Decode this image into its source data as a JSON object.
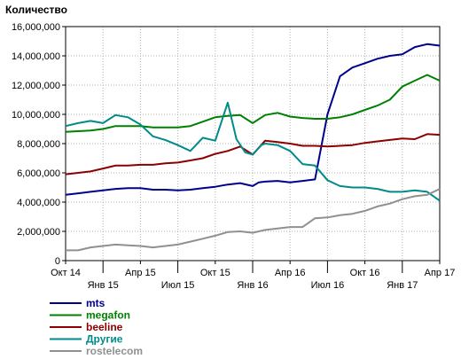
{
  "chart_data": {
    "type": "line",
    "ylabel": "Количество",
    "ylim": [
      0,
      16000000
    ],
    "yticks": [
      0,
      2000000,
      4000000,
      6000000,
      8000000,
      10000000,
      12000000,
      14000000,
      16000000
    ],
    "ytick_labels": [
      "0",
      "2,000,000",
      "4,000,000",
      "6,000,000",
      "8,000,000",
      "10,000,000",
      "12,000,000",
      "14,000,000",
      "16,000,000"
    ],
    "xlim": [
      0,
      30
    ],
    "xticks": [
      {
        "x": 0,
        "label": "Окт 14",
        "row": 1
      },
      {
        "x": 3,
        "label": "Янв 15",
        "row": 2
      },
      {
        "x": 6,
        "label": "Апр 15",
        "row": 1
      },
      {
        "x": 9,
        "label": "Июл 15",
        "row": 2
      },
      {
        "x": 12,
        "label": "Окт 15",
        "row": 1
      },
      {
        "x": 15,
        "label": "Янв 16",
        "row": 2
      },
      {
        "x": 18,
        "label": "Апр 16",
        "row": 1
      },
      {
        "x": 21,
        "label": "Июл 16",
        "row": 2
      },
      {
        "x": 24,
        "label": "Окт 16",
        "row": 1
      },
      {
        "x": 27,
        "label": "Янв 17",
        "row": 2
      },
      {
        "x": 30,
        "label": "Апр 17",
        "row": 1
      }
    ],
    "grid": true,
    "legend_position": "bottom-left",
    "series": [
      {
        "name": "mts",
        "color": "#00008b",
        "x": [
          0,
          1,
          2,
          3,
          4,
          5,
          6,
          7,
          8,
          9,
          10,
          11,
          12,
          13,
          14,
          15,
          15.5,
          16,
          17,
          18,
          19,
          20,
          21,
          22,
          23,
          24,
          25,
          26,
          27,
          28,
          29,
          30
        ],
        "values": [
          4500000,
          4600000,
          4700000,
          4800000,
          4900000,
          4950000,
          4950000,
          4850000,
          4850000,
          4800000,
          4850000,
          4950000,
          5050000,
          5200000,
          5300000,
          5100000,
          5350000,
          5400000,
          5450000,
          5350000,
          5450000,
          5550000,
          10000000,
          12600000,
          13200000,
          13500000,
          13800000,
          14000000,
          14100000,
          14600000,
          14800000,
          14700000
        ]
      },
      {
        "name": "megafon",
        "color": "#008000",
        "x": [
          0,
          1,
          2,
          3,
          4,
          5,
          6,
          7,
          8,
          9,
          10,
          11,
          12,
          13,
          14,
          15,
          16,
          17,
          18,
          19,
          20,
          21,
          22,
          23,
          24,
          25,
          26,
          27,
          28,
          29,
          30
        ],
        "values": [
          8800000,
          8850000,
          8900000,
          9000000,
          9200000,
          9200000,
          9200000,
          9100000,
          9100000,
          9100000,
          9200000,
          9500000,
          9800000,
          9900000,
          9950000,
          9400000,
          9950000,
          10100000,
          9850000,
          9750000,
          9700000,
          9700000,
          9800000,
          10000000,
          10300000,
          10600000,
          11000000,
          11900000,
          12300000,
          12700000,
          12300000
        ]
      },
      {
        "name": "beeline",
        "color": "#8b0000",
        "x": [
          0,
          1,
          2,
          3,
          4,
          5,
          6,
          7,
          8,
          9,
          10,
          11,
          12,
          13,
          14,
          15,
          16,
          17,
          18,
          19,
          20,
          21,
          22,
          23,
          24,
          25,
          26,
          27,
          28,
          29,
          30
        ],
        "values": [
          5900000,
          6000000,
          6100000,
          6300000,
          6500000,
          6500000,
          6550000,
          6550000,
          6650000,
          6700000,
          6850000,
          7000000,
          7300000,
          7500000,
          7800000,
          7250000,
          8200000,
          8100000,
          8000000,
          7850000,
          7850000,
          7800000,
          7850000,
          7900000,
          8050000,
          8150000,
          8250000,
          8350000,
          8300000,
          8650000,
          8600000
        ]
      },
      {
        "name": "Другие",
        "color": "#008b8b",
        "x": [
          0,
          1,
          2,
          3,
          4,
          5,
          6,
          7,
          8,
          9,
          10,
          11,
          12,
          13,
          13.7,
          14.4,
          15,
          15.7,
          16,
          17,
          18,
          19,
          20,
          21,
          22,
          23,
          24,
          25,
          26,
          27,
          28,
          29,
          30
        ],
        "values": [
          9200000,
          9400000,
          9550000,
          9400000,
          9950000,
          9800000,
          9300000,
          8500000,
          8250000,
          7900000,
          7500000,
          8400000,
          8200000,
          10800000,
          8300000,
          7400000,
          7250000,
          7900000,
          8000000,
          7900000,
          7500000,
          6600000,
          6500000,
          5500000,
          5100000,
          5000000,
          5000000,
          4900000,
          4700000,
          4700000,
          4800000,
          4700000,
          4100000
        ]
      },
      {
        "name": "rostelecom",
        "color": "#909090",
        "x": [
          0,
          1,
          2,
          3,
          4,
          5,
          6,
          7,
          8,
          9,
          10,
          11,
          12,
          13,
          14,
          15,
          16,
          17,
          18,
          19,
          20,
          21,
          22,
          23,
          24,
          25,
          26,
          27,
          28,
          29,
          30
        ],
        "values": [
          700000,
          700000,
          900000,
          1000000,
          1100000,
          1050000,
          1000000,
          900000,
          1000000,
          1100000,
          1300000,
          1500000,
          1700000,
          1950000,
          2000000,
          1900000,
          2100000,
          2200000,
          2300000,
          2300000,
          2900000,
          2950000,
          3100000,
          3200000,
          3400000,
          3700000,
          3900000,
          4200000,
          4400000,
          4500000,
          4900000
        ]
      }
    ]
  }
}
